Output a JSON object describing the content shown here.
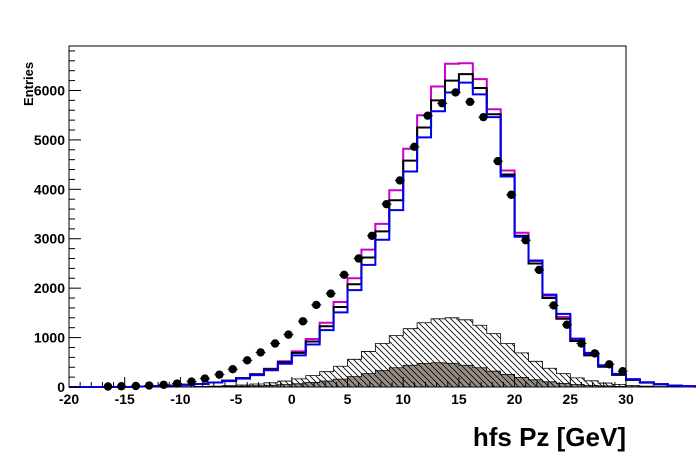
{
  "chart_data": {
    "type": "bar",
    "title": "",
    "xlabel": "hfs Pz [GeV]",
    "ylabel": "Entries",
    "xlim": [
      -20,
      30
    ],
    "ylim": [
      0,
      6900
    ],
    "bin_width": 1.25,
    "x_ticks": [
      -20,
      -15,
      -10,
      -5,
      0,
      5,
      10,
      15,
      20,
      25,
      30
    ],
    "y_ticks": [
      0,
      1000,
      2000,
      3000,
      4000,
      5000,
      6000
    ],
    "grid": false,
    "bin_edges_start": -20,
    "series": [
      {
        "style": "hist-line",
        "color": "#cc00cc",
        "values": [
          0,
          0,
          0,
          0,
          0,
          10,
          20,
          30,
          45,
          60,
          90,
          130,
          180,
          260,
          370,
          520,
          720,
          970,
          1300,
          1720,
          2200,
          2780,
          3300,
          3980,
          4820,
          5500,
          6080,
          6540,
          6550,
          6230,
          5620,
          4380,
          3120,
          2550,
          1850,
          1420,
          960,
          660,
          420,
          250,
          150,
          90,
          55,
          30,
          15,
          8
        ]
      },
      {
        "style": "hist-line",
        "color": "#000000",
        "values": [
          0,
          0,
          0,
          0,
          0,
          10,
          20,
          30,
          45,
          60,
          90,
          130,
          180,
          255,
          360,
          500,
          690,
          920,
          1230,
          1620,
          2080,
          2620,
          3150,
          3780,
          4580,
          5250,
          5800,
          6200,
          6330,
          6050,
          5520,
          4300,
          3060,
          2500,
          1800,
          1380,
          930,
          640,
          410,
          245,
          145,
          88,
          52,
          28,
          14,
          7
        ]
      },
      {
        "style": "hist-line",
        "color": "#0000ee",
        "values": [
          0,
          0,
          0,
          0,
          0,
          10,
          20,
          30,
          45,
          60,
          90,
          120,
          170,
          240,
          340,
          470,
          640,
          860,
          1150,
          1510,
          1960,
          2470,
          2980,
          3580,
          4360,
          5050,
          5580,
          5960,
          6160,
          5920,
          5460,
          4260,
          3040,
          2560,
          1870,
          1480,
          980,
          690,
          440,
          265,
          160,
          95,
          58,
          31,
          16,
          8
        ]
      },
      {
        "style": "hatched",
        "color": "#000000",
        "values": [
          0,
          0,
          0,
          0,
          0,
          0,
          3,
          5,
          8,
          12,
          18,
          27,
          40,
          60,
          85,
          120,
          165,
          230,
          310,
          420,
          560,
          720,
          880,
          1040,
          1180,
          1300,
          1380,
          1400,
          1360,
          1250,
          1080,
          880,
          690,
          520,
          380,
          270,
          185,
          125,
          80,
          50,
          30,
          18,
          10,
          5,
          3,
          1
        ]
      },
      {
        "style": "filled",
        "color": "#968d85",
        "values": [
          0,
          0,
          0,
          0,
          0,
          0,
          1,
          2,
          3,
          5,
          8,
          11,
          16,
          24,
          34,
          48,
          65,
          90,
          120,
          160,
          210,
          270,
          330,
          390,
          440,
          475,
          490,
          480,
          440,
          390,
          320,
          255,
          195,
          145,
          105,
          73,
          50,
          33,
          21,
          13,
          8,
          5,
          3,
          1,
          0,
          0
        ]
      },
      {
        "style": "points",
        "color": "#000000",
        "x": [
          -16.5,
          -15.3,
          -14.0,
          -12.8,
          -11.5,
          -10.3,
          -9.0,
          -7.8,
          -6.5,
          -5.3,
          -4.0,
          -2.8,
          -1.5,
          -0.3,
          1.0,
          2.2,
          3.5,
          4.7,
          6.0,
          7.2,
          8.5,
          9.7,
          11.0,
          12.2,
          13.5,
          14.7,
          16.0,
          17.2,
          18.5,
          19.7,
          21.0,
          22.2,
          23.5,
          24.7,
          26.0,
          27.2,
          28.5,
          29.7
        ],
        "y": [
          10,
          15,
          20,
          30,
          45,
          70,
          110,
          170,
          250,
          360,
          540,
          700,
          880,
          1060,
          1330,
          1660,
          1890,
          2270,
          2600,
          3060,
          3700,
          4180,
          4860,
          5490,
          5740,
          5960,
          5770,
          5460,
          4570,
          3890,
          2970,
          2370,
          1650,
          1260,
          880,
          680,
          460,
          320
        ]
      }
    ]
  }
}
